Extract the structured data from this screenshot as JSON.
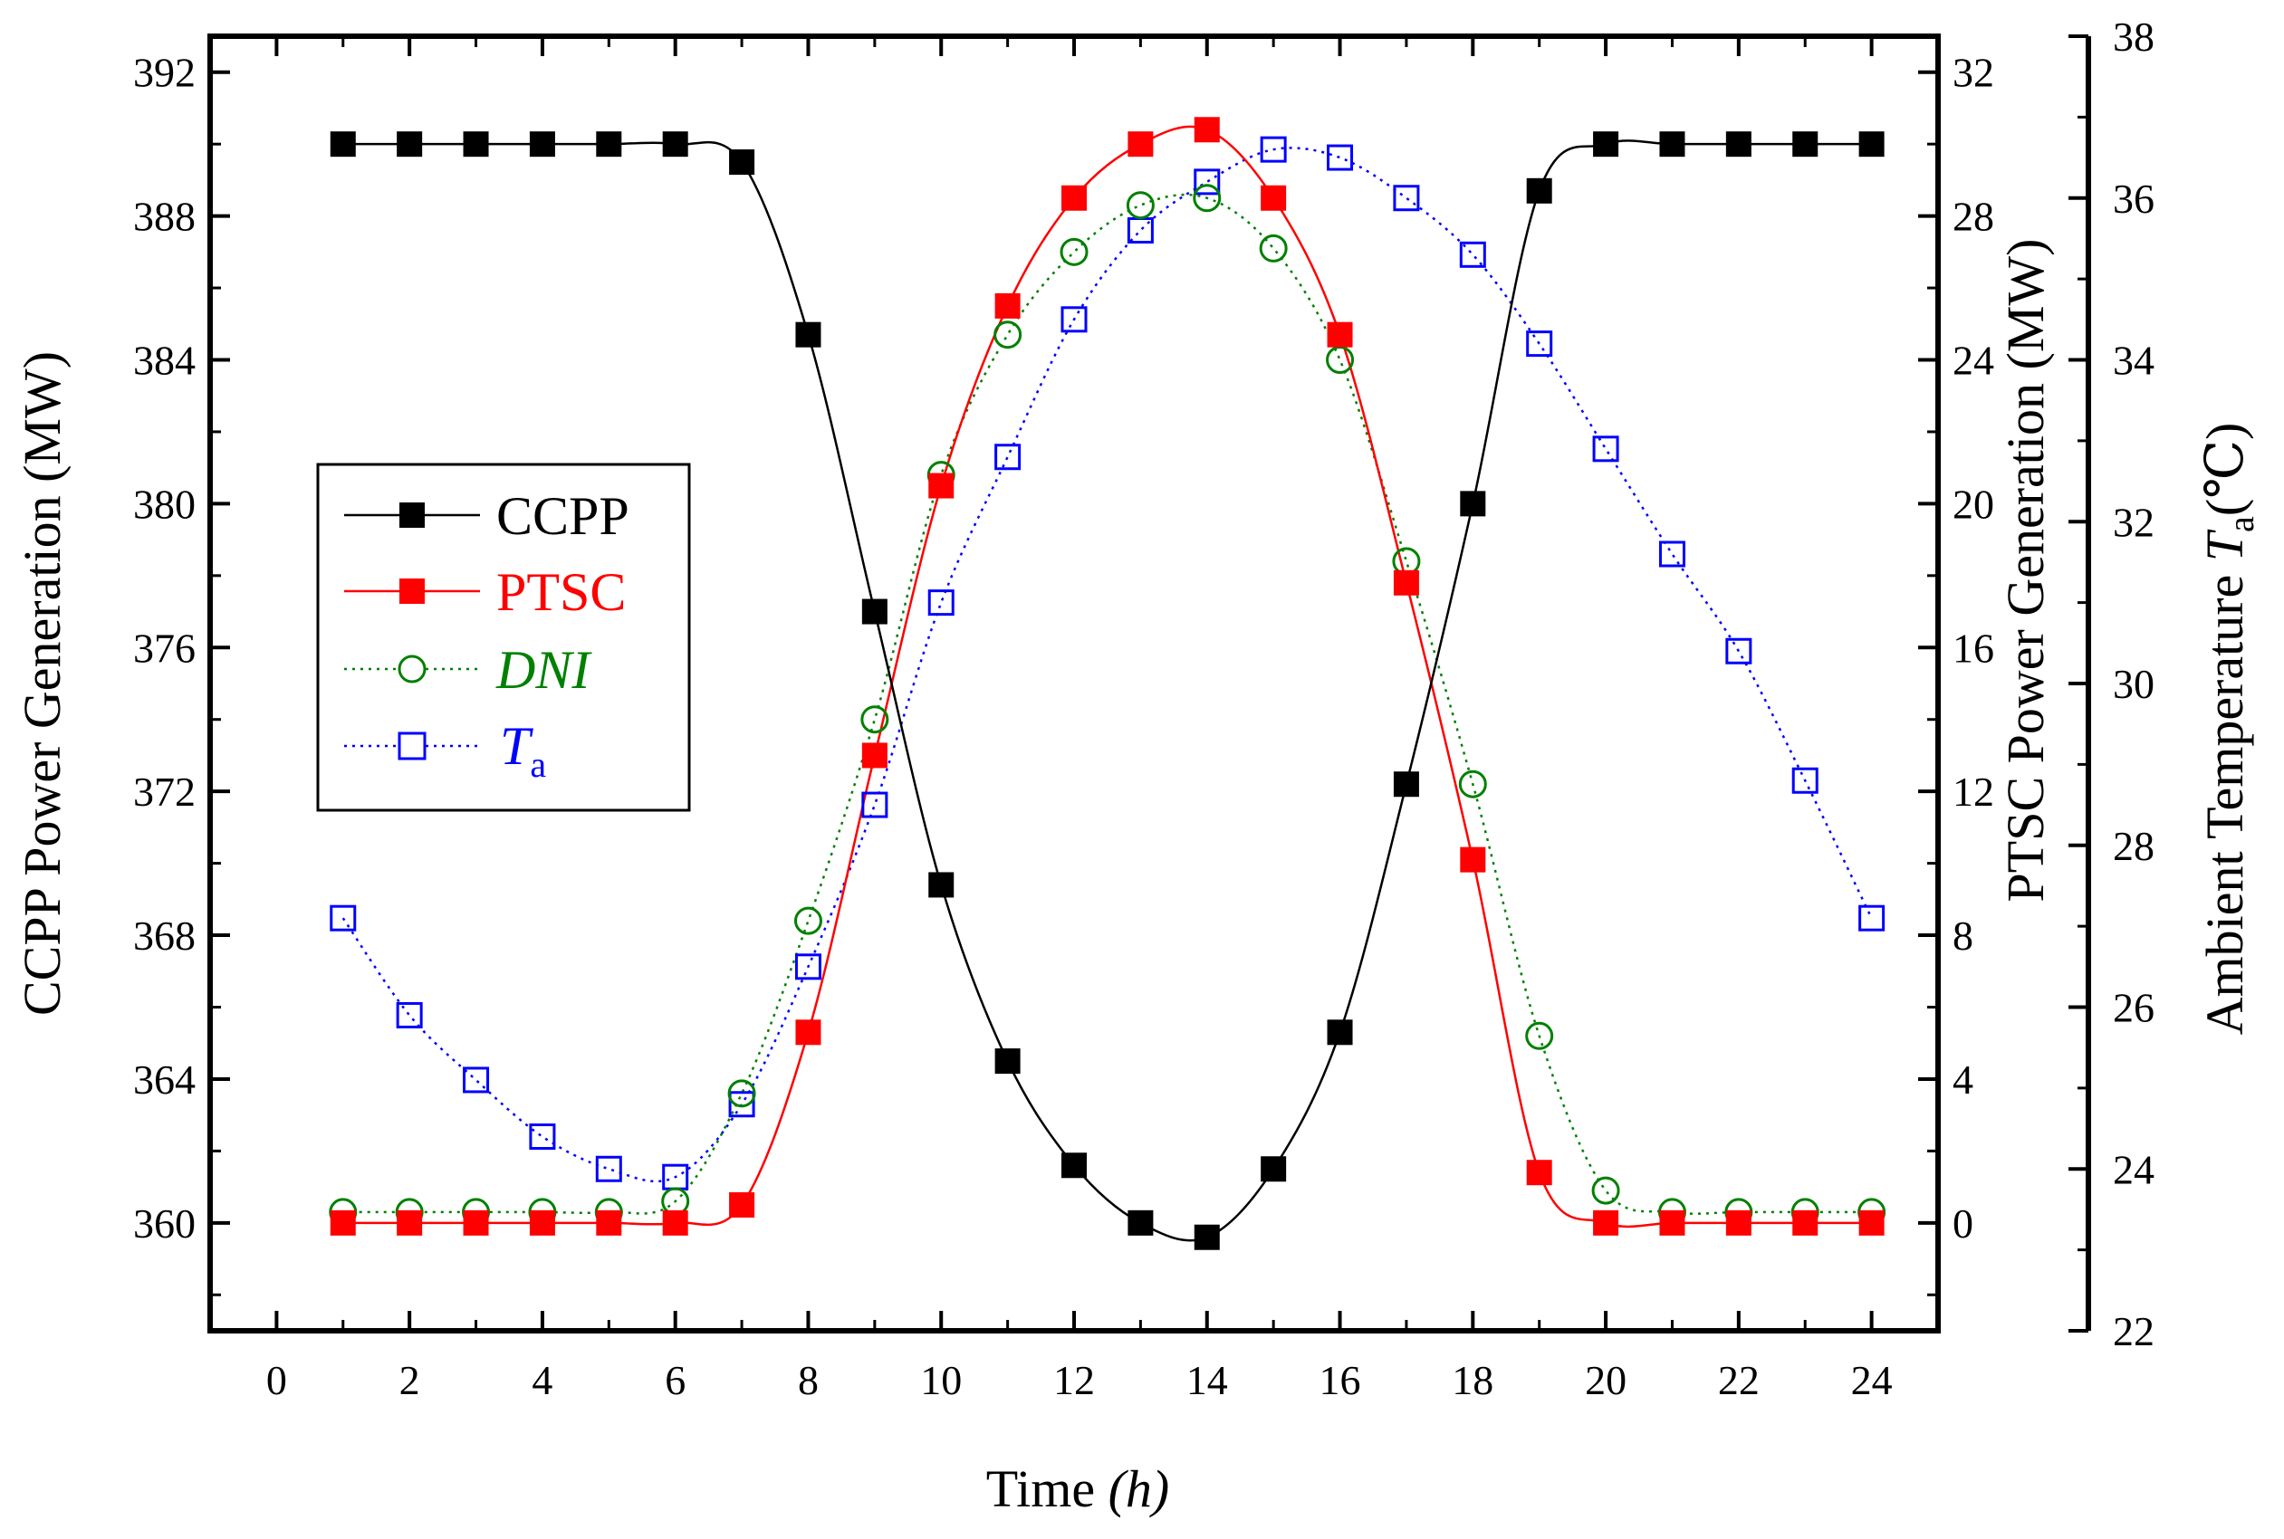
{
  "chart_data": {
    "type": "line",
    "x_axis": {
      "label_main": "Time ",
      "label_italic": "(h)",
      "range": [
        -1,
        25
      ],
      "ticks": [
        "0",
        "2",
        "4",
        "6",
        "8",
        "10",
        "12",
        "14",
        "16",
        "18",
        "20",
        "22",
        "24"
      ]
    },
    "left_axis": {
      "label": "CCPP Power Generation (MW)",
      "range": [
        357,
        393
      ],
      "ticks": [
        "360",
        "364",
        "368",
        "372",
        "376",
        "380",
        "384",
        "388",
        "392"
      ]
    },
    "right_axis_1": {
      "label": "PTSC Power Generation (MW)",
      "range": [
        -3,
        33
      ],
      "ticks": [
        "0",
        "4",
        "8",
        "12",
        "16",
        "20",
        "24",
        "28",
        "32"
      ]
    },
    "right_axis_2": {
      "label_main": "Ambient Temperature ",
      "label_symbol": "T",
      "label_subscript": "a",
      "label_unit": "(℃)",
      "range": [
        22,
        38
      ],
      "ticks": [
        "22",
        "24",
        "26",
        "28",
        "30",
        "32",
        "34",
        "36",
        "38"
      ]
    },
    "x": [
      1,
      2,
      3,
      4,
      5,
      6,
      7,
      8,
      9,
      10,
      11,
      12,
      13,
      14,
      15,
      16,
      17,
      18,
      19,
      20,
      21,
      22,
      23,
      24
    ],
    "series": [
      {
        "name": "CCPP",
        "axis": "left",
        "color": "#000000",
        "marker": "filled-square",
        "line": "solid",
        "values": [
          390,
          390,
          390,
          390,
          390,
          390,
          389.5,
          384.7,
          377,
          369.4,
          364.5,
          361.6,
          360,
          359.6,
          361.5,
          365.3,
          372.2,
          380,
          388.7,
          390,
          390,
          390,
          390,
          390
        ]
      },
      {
        "name": "PTSC",
        "axis": "right1",
        "color": "#ff0000",
        "marker": "filled-square",
        "line": "solid",
        "values": [
          0,
          0,
          0,
          0,
          0,
          0,
          0.5,
          5.3,
          13,
          20.5,
          25.5,
          28.5,
          30,
          30.4,
          28.5,
          24.7,
          17.8,
          10.1,
          1.4,
          0,
          0,
          0,
          0,
          0
        ]
      },
      {
        "name": "DNI",
        "axis": "right1",
        "color": "#008000",
        "marker": "open-circle",
        "line": "dotted",
        "values": [
          0.3,
          0.3,
          0.3,
          0.3,
          0.3,
          0.6,
          3.6,
          8.4,
          14,
          20.8,
          24.7,
          27,
          28.3,
          28.5,
          27.1,
          24,
          18.4,
          12.2,
          5.2,
          0.9,
          0.3,
          0.3,
          0.3,
          0.3
        ]
      },
      {
        "name": "Ta",
        "axis": "right2",
        "color": "#0000ff",
        "marker": "open-square",
        "line": "dotted",
        "values": [
          27.1,
          25.9,
          25.1,
          24.4,
          24,
          23.9,
          24.8,
          26.5,
          28.5,
          31,
          32.8,
          34.5,
          35.6,
          36.2,
          36.6,
          36.5,
          36,
          35.3,
          34.2,
          32.9,
          31.6,
          30.4,
          28.8,
          27.1
        ]
      }
    ],
    "legend": {
      "position": "center-left",
      "items": [
        {
          "label": "CCPP"
        },
        {
          "label": "PTSC"
        },
        {
          "label": "DNI"
        },
        {
          "label_main": "T",
          "label_sub": "a"
        }
      ]
    }
  }
}
